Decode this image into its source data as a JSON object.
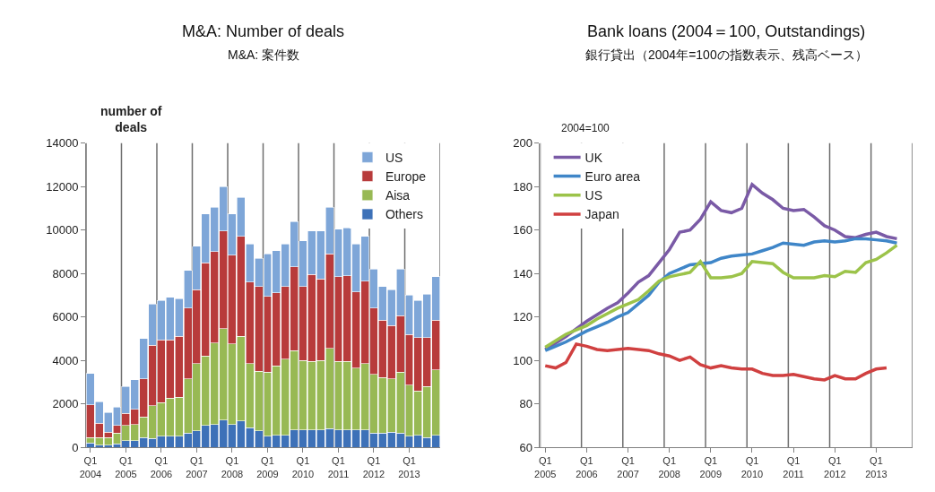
{
  "chart_data": [
    {
      "type": "bar",
      "title": "M&A: Number of deals",
      "subtitle": "M&A: 案件数",
      "ylabel": "number of\ndeals",
      "categories": [
        "Q1\n2004",
        null,
        null,
        null,
        "Q1\n2005",
        null,
        null,
        null,
        "Q1\n2006",
        null,
        null,
        null,
        "Q1\n2007",
        null,
        null,
        null,
        "Q1\n2008",
        null,
        null,
        null,
        "Q1\n2009",
        null,
        null,
        null,
        "Q1\n2010",
        null,
        null,
        null,
        "Q1\n2011",
        null,
        null,
        null,
        "Q1\n2012",
        null,
        null,
        null,
        "Q1\n2013",
        null,
        null,
        null
      ],
      "stacked": true,
      "ylim": [
        0,
        14000
      ],
      "yticks": [
        0,
        2000,
        4000,
        6000,
        8000,
        10000,
        12000,
        14000
      ],
      "grid": "x",
      "legend": "top right",
      "series": [
        {
          "name": "Others",
          "color": "#3d71b8",
          "values": [
            200,
            100,
            100,
            150,
            300,
            300,
            450,
            400,
            500,
            500,
            500,
            650,
            750,
            1000,
            1050,
            1250,
            1050,
            1200,
            900,
            750,
            500,
            550,
            550,
            800,
            800,
            800,
            800,
            850,
            800,
            800,
            800,
            800,
            650,
            650,
            700,
            650,
            500,
            550,
            450,
            550
          ]
        },
        {
          "name": "Aisa",
          "color": "#98b954",
          "values": [
            250,
            350,
            350,
            500,
            700,
            750,
            950,
            1500,
            1550,
            1750,
            1800,
            2500,
            3100,
            3200,
            3750,
            4200,
            3700,
            3900,
            2950,
            2750,
            2950,
            3200,
            3500,
            3650,
            3200,
            3150,
            3200,
            3700,
            3150,
            3150,
            2850,
            3050,
            2700,
            2550,
            2450,
            2800,
            2350,
            2050,
            2350,
            3000
          ]
        },
        {
          "name": "Europe",
          "color": "#b83b3b",
          "values": [
            1500,
            650,
            250,
            350,
            550,
            700,
            1750,
            2800,
            2900,
            2700,
            2800,
            3250,
            3400,
            4300,
            4200,
            4500,
            4100,
            4600,
            3750,
            3900,
            3500,
            3350,
            3350,
            3850,
            3400,
            4000,
            3750,
            4350,
            3900,
            3950,
            3500,
            3800,
            3050,
            2650,
            2450,
            2600,
            2350,
            2450,
            2250,
            2300
          ]
        },
        {
          "name": "US",
          "color": "#7ea6d8",
          "values": [
            1450,
            1000,
            900,
            850,
            1250,
            1350,
            1850,
            1900,
            1800,
            1950,
            1750,
            1750,
            2000,
            2250,
            2050,
            2050,
            1900,
            1800,
            1750,
            1300,
            1950,
            1950,
            1950,
            2100,
            2100,
            2000,
            2200,
            2150,
            2200,
            2200,
            2200,
            2050,
            1800,
            1550,
            1650,
            2150,
            1800,
            1700,
            2000,
            2000
          ]
        }
      ]
    },
    {
      "type": "line",
      "title": "Bank loans (2004＝100, Outstandings)",
      "subtitle": "銀行貸出（2004年=100の指数表示、残高ベース）",
      "ylabel": "2004=100",
      "categories": [
        "Q1\n2005",
        null,
        null,
        null,
        "Q1\n2006",
        null,
        null,
        null,
        "Q1\n2007",
        null,
        null,
        null,
        "Q1\n2008",
        null,
        null,
        null,
        "Q1\n2009",
        null,
        null,
        null,
        "Q1\n2010",
        null,
        null,
        null,
        "Q1\n2011",
        null,
        null,
        null,
        "Q1\n2012",
        null,
        null,
        null,
        "Q1\n2013",
        null,
        null,
        null
      ],
      "ylim": [
        60,
        200
      ],
      "yticks": [
        60,
        80,
        100,
        120,
        140,
        160,
        180,
        200
      ],
      "grid": "x",
      "legend": "top left",
      "marker": "none",
      "line_style": "solid",
      "series": [
        {
          "name": "UK",
          "color": "#7a5aa6",
          "values": [
            105,
            108,
            111,
            114.5,
            118,
            121,
            124,
            126.5,
            131,
            136,
            139,
            145,
            151,
            159,
            160,
            165,
            173,
            169,
            168,
            170,
            181,
            177,
            174,
            170,
            169,
            169.5,
            166,
            162,
            160,
            157,
            156.5,
            158,
            159,
            157,
            156,
            null
          ]
        },
        {
          "name": "Euro area",
          "color": "#3f86c8",
          "values": [
            104.5,
            106.5,
            108.5,
            111,
            113.5,
            115.5,
            117.5,
            120,
            122,
            126,
            130,
            136,
            140,
            142,
            144,
            144.5,
            145,
            147,
            148,
            148.5,
            149,
            150.5,
            152,
            154,
            153.5,
            153,
            154.5,
            155,
            154.5,
            155,
            156,
            156,
            155.5,
            155,
            154,
            null
          ]
        },
        {
          "name": "US",
          "color": "#9cc34a",
          "values": [
            106,
            109,
            112,
            114,
            116,
            119,
            121.5,
            124,
            126,
            128,
            132,
            136.5,
            138.5,
            139.5,
            140.5,
            145.5,
            138,
            138,
            138.5,
            140,
            145.5,
            145,
            144.5,
            140.5,
            138,
            138,
            138,
            139,
            138.5,
            141,
            140.5,
            145,
            146.5,
            149.5,
            153,
            null
          ]
        },
        {
          "name": "Japan",
          "color": "#d04040",
          "values": [
            97.5,
            96.5,
            99,
            107.5,
            106.5,
            105,
            104.5,
            105,
            105.5,
            105,
            104.5,
            103,
            102,
            100,
            101.5,
            98,
            96.5,
            97.5,
            96.5,
            96,
            96,
            94,
            93,
            93,
            93.5,
            92.5,
            91.5,
            91,
            93,
            91.5,
            91.5,
            94,
            96,
            96.5,
            null,
            null
          ]
        }
      ]
    }
  ]
}
